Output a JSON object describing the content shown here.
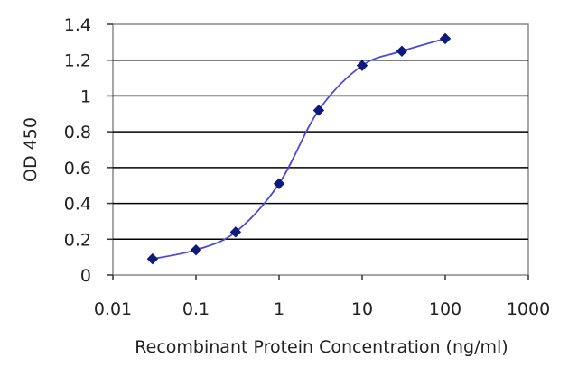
{
  "chart_data": {
    "type": "line",
    "title": "",
    "xlabel": "Recombinant Protein Concentration (ng/ml)",
    "ylabel": "OD 450",
    "x_scale": "log",
    "xlim": [
      0.01,
      1000
    ],
    "ylim": [
      0,
      1.4
    ],
    "x_ticks": [
      "0.01",
      "0.1",
      "1",
      "10",
      "100",
      "1000"
    ],
    "y_ticks": [
      "0",
      "0.2",
      "0.4",
      "0.6",
      "0.8",
      "1",
      "1.2",
      "1.4"
    ],
    "grid": "horizontal",
    "series": [
      {
        "x": [
          0.03,
          0.1,
          0.3,
          1,
          3,
          10,
          30,
          100
        ],
        "y": [
          0.09,
          0.14,
          0.24,
          0.51,
          0.92,
          1.17,
          1.25,
          1.32
        ]
      }
    ],
    "colors": {
      "line": "#4a4ad8",
      "marker": "#0f1a7a",
      "grid": "#000000",
      "plot_border": "#888888"
    }
  }
}
